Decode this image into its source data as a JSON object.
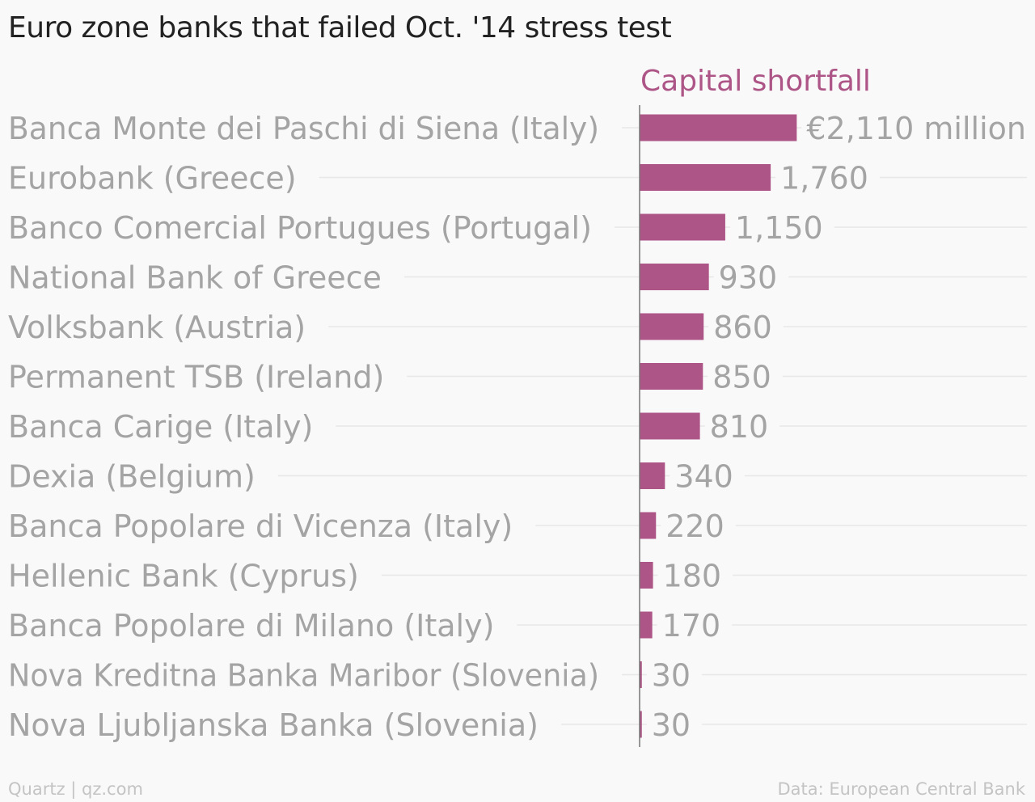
{
  "header": {
    "title": "Euro zone banks that failed Oct. '14 stress test"
  },
  "footer": {
    "source_left": "Quartz | qz.com",
    "source_right": "Data: European Central Bank"
  },
  "colors": {
    "bar": "#ad5586",
    "label_text": "#a4a4a4",
    "grid": "#e8e8e8",
    "axis": "#777777"
  },
  "chart_data": {
    "type": "bar",
    "orientation": "horizontal",
    "title": "Euro zone banks that failed Oct. '14 stress test",
    "categories": [
      "Banca Monte dei Paschi di Siena (Italy)",
      "Eurobank (Greece)",
      "Banco Comercial Portugues (Portugal)",
      "National Bank of Greece",
      "Volksbank (Austria)",
      "Permanent TSB (Ireland)",
      "Banca Carige (Italy)",
      "Dexia (Belgium)",
      "Banca Popolare di Vicenza (Italy)",
      "Hellenic Bank (Cyprus)",
      "Banca Popolare di Milano (Italy)",
      "Nova Kreditna Banka Maribor (Slovenia)",
      "Nova Ljubljanska Banka (Slovenia)"
    ],
    "series": [
      {
        "name": "Capital shortfall",
        "values": [
          2110,
          1760,
          1150,
          930,
          860,
          850,
          810,
          340,
          220,
          180,
          170,
          30,
          30
        ]
      }
    ],
    "data_labels": [
      "€2,110 million",
      "1,760",
      "1,150",
      "930",
      "860",
      "850",
      "810",
      "340",
      "220",
      "180",
      "170",
      "30",
      "30"
    ],
    "xlim": [
      0,
      5200
    ],
    "grid": true
  }
}
